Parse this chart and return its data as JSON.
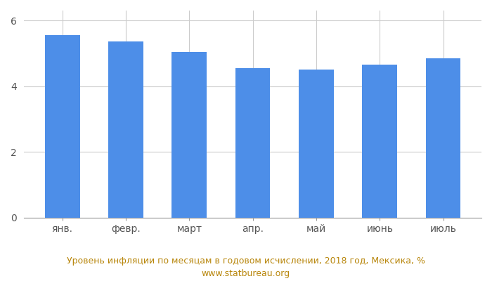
{
  "categories": [
    "янв.",
    "февр.",
    "март",
    "апр.",
    "май",
    "июнь",
    "июль"
  ],
  "values": [
    5.55,
    5.35,
    5.05,
    4.55,
    4.5,
    4.65,
    4.85
  ],
  "bar_color": "#4D8EE8",
  "ylim": [
    0,
    6.3
  ],
  "yticks": [
    0,
    2,
    4,
    6
  ],
  "caption_line1": "Уровень инфляции по месяцам в годовом исчислении, 2018 год, Мексика, %",
  "caption_line2": "www.statbureau.org",
  "caption_color": "#B8860B",
  "background_color": "#ffffff",
  "grid_color": "#cccccc",
  "bar_width": 0.55,
  "tick_color": "#999999",
  "tick_label_color": "#555555",
  "tick_fontsize": 10,
  "caption_fontsize": 9
}
